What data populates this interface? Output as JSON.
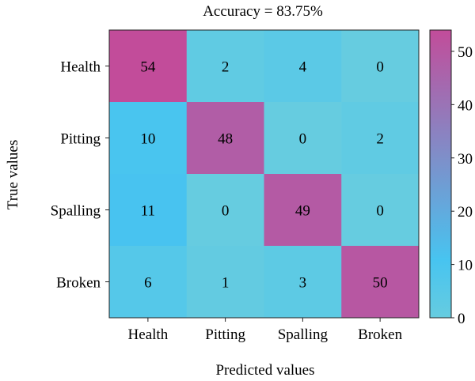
{
  "chart_data": {
    "type": "heatmap",
    "title": "Accuracy = 83.75%",
    "xlabel": "Predicted values",
    "ylabel": "True values",
    "x_categories": [
      "Health",
      "Pitting",
      "Spalling",
      "Broken"
    ],
    "y_categories": [
      "Health",
      "Pitting",
      "Spalling",
      "Broken"
    ],
    "values": [
      [
        54,
        2,
        4,
        0
      ],
      [
        10,
        48,
        0,
        2
      ],
      [
        11,
        0,
        49,
        0
      ],
      [
        6,
        1,
        3,
        50
      ]
    ],
    "colorbar": {
      "range": [
        0,
        54
      ],
      "ticks": [
        0,
        10,
        20,
        30,
        40,
        50
      ],
      "colors": {
        "low": "#66cce0",
        "mid": "#47c4f0",
        "high": "#c24c9a"
      }
    },
    "grid": false
  }
}
